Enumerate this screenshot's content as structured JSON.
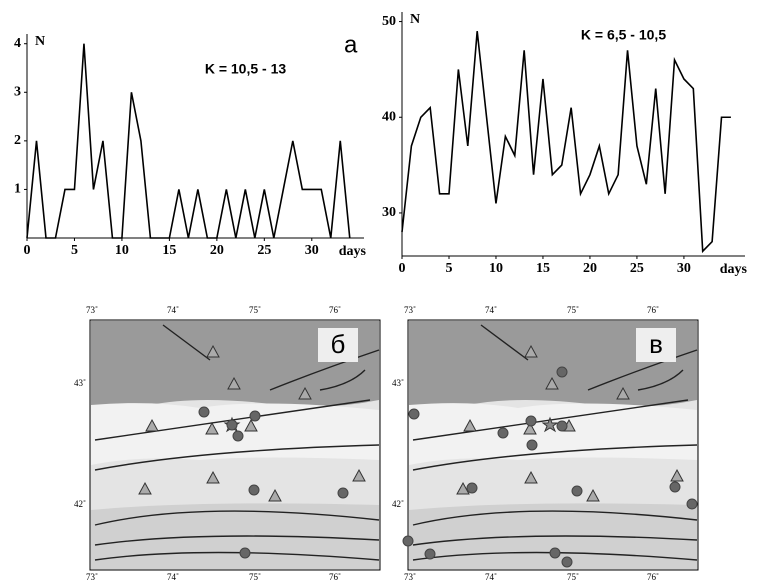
{
  "chart_data": [
    {
      "type": "line",
      "panel_label": "а",
      "annotation": "K = 10,5 - 13",
      "ylabel": "N",
      "xlabel": "days",
      "x": [
        0,
        1,
        2,
        3,
        4,
        5,
        6,
        7,
        8,
        9,
        10,
        11,
        12,
        13,
        14,
        15,
        16,
        17,
        18,
        19,
        20,
        21,
        22,
        23,
        24,
        25,
        26,
        27,
        28,
        29,
        30,
        31,
        32,
        33,
        34
      ],
      "series": [
        {
          "color": "#000000",
          "values": [
            0,
            2,
            0,
            0,
            1,
            1,
            4,
            1,
            2,
            0,
            0,
            3,
            2,
            0,
            0,
            0,
            1,
            0,
            1,
            0,
            0,
            1,
            0,
            1,
            0,
            1,
            0,
            1,
            2,
            1,
            1,
            1,
            0,
            2,
            0
          ]
        }
      ],
      "xlim": [
        0,
        35.5
      ],
      "ylim": [
        0,
        4.2
      ],
      "xticks": [
        0,
        5,
        10,
        15,
        20,
        25,
        30
      ],
      "yticks": [
        1,
        2,
        3,
        4
      ]
    },
    {
      "type": "line",
      "annotation": "K = 6,5 - 10,5",
      "ylabel": "N",
      "xlabel": "days",
      "x": [
        0,
        1,
        2,
        3,
        4,
        5,
        6,
        7,
        8,
        9,
        10,
        11,
        12,
        13,
        14,
        15,
        16,
        17,
        18,
        19,
        20,
        21,
        22,
        23,
        24,
        25,
        26,
        27,
        28,
        29,
        30,
        31,
        32,
        33,
        34,
        35
      ],
      "series": [
        {
          "color": "#000000",
          "values": [
            28,
            37,
            40,
            41,
            32,
            32,
            45,
            37,
            49,
            40,
            31,
            38,
            36,
            47,
            34,
            44,
            34,
            35,
            41,
            32,
            34,
            37,
            32,
            34,
            47,
            37,
            33,
            43,
            32,
            46,
            44,
            43,
            26,
            27,
            40,
            40
          ]
        }
      ],
      "xlim": [
        0,
        36.5
      ],
      "ylim": [
        25.5,
        51
      ],
      "xticks": [
        0,
        5,
        10,
        15,
        20,
        25,
        30
      ],
      "yticks": [
        30,
        40,
        50
      ]
    }
  ],
  "maps": [
    {
      "label": "б",
      "lon_labels": [
        "73˚",
        "74˚",
        "75˚",
        "76˚"
      ],
      "lat_labels": [
        "43˚",
        "42˚"
      ]
    },
    {
      "label": "в",
      "lon_labels": [
        "73˚",
        "74˚",
        "75˚",
        "76˚"
      ],
      "lat_labels": [
        "43˚",
        "42˚"
      ]
    }
  ]
}
